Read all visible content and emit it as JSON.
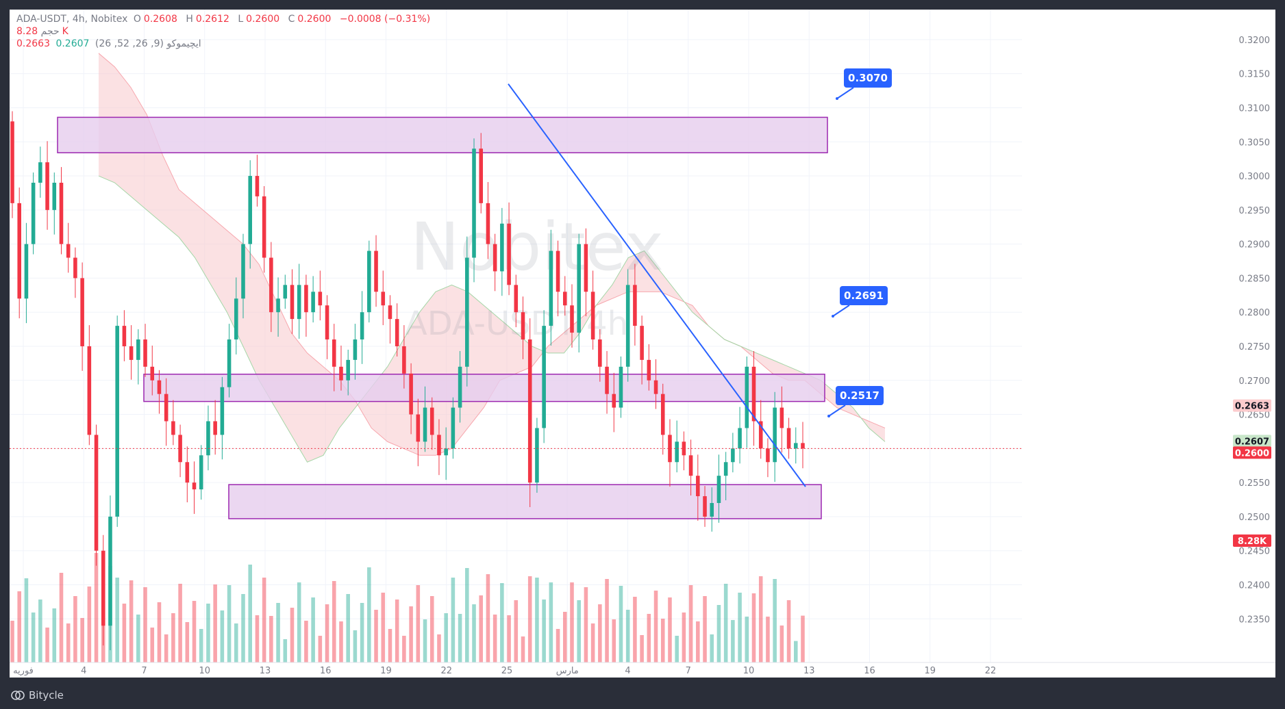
{
  "header": {
    "symbol": "ADA-USDT, 4h, Nobitex",
    "ohlc": [
      {
        "k": "O",
        "v": "0.2608"
      },
      {
        "k": "H",
        "v": "0.2612"
      },
      {
        "k": "L",
        "v": "0.2600"
      },
      {
        "k": "C",
        "v": "0.2600"
      }
    ],
    "change": "−0.0008 (−0.31%)",
    "volume_label": "حجم",
    "volume_value": "8.28K",
    "ichimoku_label": "ایچیموکو (9, 26, 52, 26)",
    "ichimoku_values": [
      "0.2607",
      "0.2663"
    ]
  },
  "watermark": {
    "top": "Nobitex",
    "bottom": "ADA-USDT 4h"
  },
  "footer": {
    "brand": "Bitycle"
  },
  "colors": {
    "up": "#22ab94",
    "down": "#f23645",
    "zone_fill": "#e6cdee",
    "zone_stroke": "#9c27b0",
    "trendline": "#2962ff",
    "callout": "#2962ff",
    "cloud_bear": "#f8c9cc",
    "cloud_bull": "#c8e6c9",
    "background": "#ffffff",
    "frame": "#2a2e39"
  },
  "chart_data": {
    "type": "candlestick",
    "y_axis": {
      "range": [
        0.2285,
        0.3225
      ],
      "tick_labels": [
        "0.3200",
        "0.3150",
        "0.3100",
        "0.3050",
        "0.3000",
        "0.2950",
        "0.2900",
        "0.2850",
        "0.2800",
        "0.2750",
        "0.2700",
        "0.2650",
        "0.2600",
        "0.2550",
        "0.2500",
        "0.2450",
        "0.2400",
        "0.2350"
      ]
    },
    "x_axis": {
      "tick_labels": [
        "فوریه",
        "4",
        "7",
        "10",
        "13",
        "16",
        "19",
        "22",
        "25",
        "مارس",
        "4",
        "7",
        "10",
        "13",
        "16",
        "19",
        "22"
      ]
    },
    "price_badges": [
      {
        "value": "0.2663",
        "role": "ichimoku_b"
      },
      {
        "value": "0.2607",
        "role": "ichimoku_a"
      },
      {
        "value": "0.2600",
        "role": "last_price"
      },
      {
        "value": "8.28K",
        "role": "volume"
      }
    ],
    "zones": [
      {
        "low": 0.3034,
        "high": 0.3086
      },
      {
        "low": 0.2669,
        "high": 0.2709
      },
      {
        "low": 0.2497,
        "high": 0.2547
      }
    ],
    "levels": [
      {
        "label": "0.3070",
        "value": 0.307
      },
      {
        "label": "0.2691",
        "value": 0.2691
      },
      {
        "label": "0.2517",
        "value": 0.2517
      }
    ],
    "trendline": [
      {
        "bar": 0,
        "price": 0.3135
      },
      {
        "bar": 1,
        "price": 0.2544
      }
    ],
    "last_price": 0.26,
    "candles_seed": [
      [
        0.308,
        0.296
      ],
      [
        0.296,
        0.282
      ],
      [
        0.282,
        0.29
      ],
      [
        0.29,
        0.299
      ],
      [
        0.299,
        0.302
      ],
      [
        0.302,
        0.295
      ],
      [
        0.295,
        0.299
      ],
      [
        0.299,
        0.29
      ],
      [
        0.29,
        0.288
      ],
      [
        0.288,
        0.285
      ],
      [
        0.285,
        0.275
      ],
      [
        0.275,
        0.262
      ],
      [
        0.262,
        0.245
      ],
      [
        0.245,
        0.234
      ],
      [
        0.234,
        0.25
      ],
      [
        0.25,
        0.278
      ],
      [
        0.278,
        0.275
      ],
      [
        0.275,
        0.273
      ],
      [
        0.273,
        0.276
      ],
      [
        0.276,
        0.272
      ],
      [
        0.272,
        0.27
      ],
      [
        0.27,
        0.268
      ],
      [
        0.268,
        0.264
      ],
      [
        0.264,
        0.262
      ],
      [
        0.262,
        0.258
      ],
      [
        0.258,
        0.255
      ],
      [
        0.255,
        0.254
      ],
      [
        0.254,
        0.259
      ],
      [
        0.259,
        0.264
      ],
      [
        0.264,
        0.262
      ],
      [
        0.262,
        0.269
      ],
      [
        0.269,
        0.276
      ],
      [
        0.276,
        0.282
      ],
      [
        0.282,
        0.29
      ],
      [
        0.29,
        0.3
      ],
      [
        0.3,
        0.297
      ],
      [
        0.297,
        0.288
      ],
      [
        0.288,
        0.28
      ],
      [
        0.28,
        0.282
      ],
      [
        0.282,
        0.284
      ],
      [
        0.284,
        0.279
      ],
      [
        0.279,
        0.284
      ],
      [
        0.284,
        0.28
      ],
      [
        0.28,
        0.283
      ],
      [
        0.283,
        0.281
      ],
      [
        0.281,
        0.276
      ],
      [
        0.276,
        0.272
      ],
      [
        0.272,
        0.27
      ],
      [
        0.27,
        0.273
      ],
      [
        0.273,
        0.276
      ],
      [
        0.276,
        0.28
      ],
      [
        0.28,
        0.289
      ],
      [
        0.289,
        0.283
      ],
      [
        0.283,
        0.281
      ],
      [
        0.281,
        0.279
      ],
      [
        0.279,
        0.275
      ],
      [
        0.275,
        0.271
      ],
      [
        0.271,
        0.265
      ],
      [
        0.265,
        0.261
      ],
      [
        0.261,
        0.266
      ],
      [
        0.266,
        0.262
      ],
      [
        0.262,
        0.259
      ],
      [
        0.259,
        0.26
      ],
      [
        0.26,
        0.266
      ],
      [
        0.266,
        0.272
      ],
      [
        0.272,
        0.288
      ],
      [
        0.288,
        0.304
      ],
      [
        0.304,
        0.296
      ],
      [
        0.296,
        0.29
      ],
      [
        0.29,
        0.286
      ],
      [
        0.286,
        0.293
      ],
      [
        0.293,
        0.284
      ],
      [
        0.284,
        0.28
      ],
      [
        0.28,
        0.276
      ],
      [
        0.276,
        0.255
      ],
      [
        0.255,
        0.263
      ],
      [
        0.263,
        0.278
      ],
      [
        0.278,
        0.289
      ],
      [
        0.289,
        0.283
      ],
      [
        0.283,
        0.281
      ],
      [
        0.281,
        0.277
      ],
      [
        0.277,
        0.29
      ],
      [
        0.29,
        0.283
      ],
      [
        0.283,
        0.276
      ],
      [
        0.276,
        0.272
      ],
      [
        0.272,
        0.268
      ],
      [
        0.268,
        0.266
      ],
      [
        0.266,
        0.272
      ],
      [
        0.272,
        0.284
      ],
      [
        0.284,
        0.278
      ],
      [
        0.278,
        0.273
      ],
      [
        0.273,
        0.27
      ],
      [
        0.27,
        0.268
      ],
      [
        0.268,
        0.262
      ],
      [
        0.262,
        0.258
      ],
      [
        0.258,
        0.261
      ],
      [
        0.261,
        0.259
      ],
      [
        0.259,
        0.256
      ],
      [
        0.256,
        0.253
      ],
      [
        0.253,
        0.25
      ],
      [
        0.25,
        0.252
      ],
      [
        0.252,
        0.256
      ],
      [
        0.256,
        0.258
      ],
      [
        0.258,
        0.26
      ],
      [
        0.26,
        0.263
      ],
      [
        0.263,
        0.272
      ],
      [
        0.272,
        0.264
      ],
      [
        0.264,
        0.26
      ],
      [
        0.26,
        0.258
      ],
      [
        0.258,
        0.266
      ],
      [
        0.266,
        0.263
      ],
      [
        0.263,
        0.26
      ],
      [
        0.26,
        0.2608
      ],
      [
        0.2608,
        0.26
      ]
    ],
    "cloud_b_seed": [
      0.318,
      0.316,
      0.313,
      0.309,
      0.303,
      0.298,
      0.296,
      0.294,
      0.292,
      0.29,
      0.287,
      0.282,
      0.277,
      0.274,
      0.272,
      0.27,
      0.267,
      0.263,
      0.261,
      0.26,
      0.259,
      0.259,
      0.26,
      0.263,
      0.266,
      0.27,
      0.271,
      0.272,
      0.275,
      0.277,
      0.279,
      0.281,
      0.282,
      0.283,
      0.283,
      0.283,
      0.282,
      0.281,
      0.278,
      0.276,
      0.275,
      0.273,
      0.271,
      0.27,
      0.27,
      0.268,
      0.266,
      0.265,
      0.264,
      0.263
    ],
    "cloud_a_seed": [
      0.3,
      0.299,
      0.297,
      0.295,
      0.293,
      0.291,
      0.288,
      0.284,
      0.28,
      0.275,
      0.27,
      0.266,
      0.262,
      0.258,
      0.259,
      0.263,
      0.266,
      0.269,
      0.272,
      0.276,
      0.28,
      0.283,
      0.284,
      0.283,
      0.281,
      0.279,
      0.277,
      0.275,
      0.274,
      0.274,
      0.277,
      0.281,
      0.284,
      0.288,
      0.289,
      0.286,
      0.283,
      0.28,
      0.278,
      0.276,
      0.275,
      0.274,
      0.273,
      0.272,
      0.271,
      0.27,
      0.268,
      0.266,
      0.263,
      0.261
    ]
  }
}
